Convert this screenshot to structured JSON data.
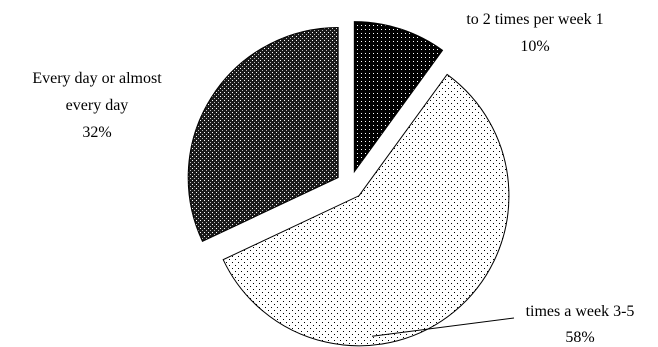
{
  "chart_data": {
    "type": "pie",
    "title": "",
    "slices": [
      {
        "label_lines": [
          "to 2 times per week 1"
        ],
        "percent_label": "10%",
        "value": 10,
        "pattern": "dense-dots-dark"
      },
      {
        "label_lines": [
          "times a week 3-5"
        ],
        "percent_label": "58%",
        "value": 58,
        "pattern": "sparse-dots-light"
      },
      {
        "label_lines": [
          "Every day or almost",
          "every day"
        ],
        "percent_label": "32%",
        "value": 32,
        "pattern": "dots-dark"
      }
    ],
    "exploded": true,
    "legend": "none"
  }
}
